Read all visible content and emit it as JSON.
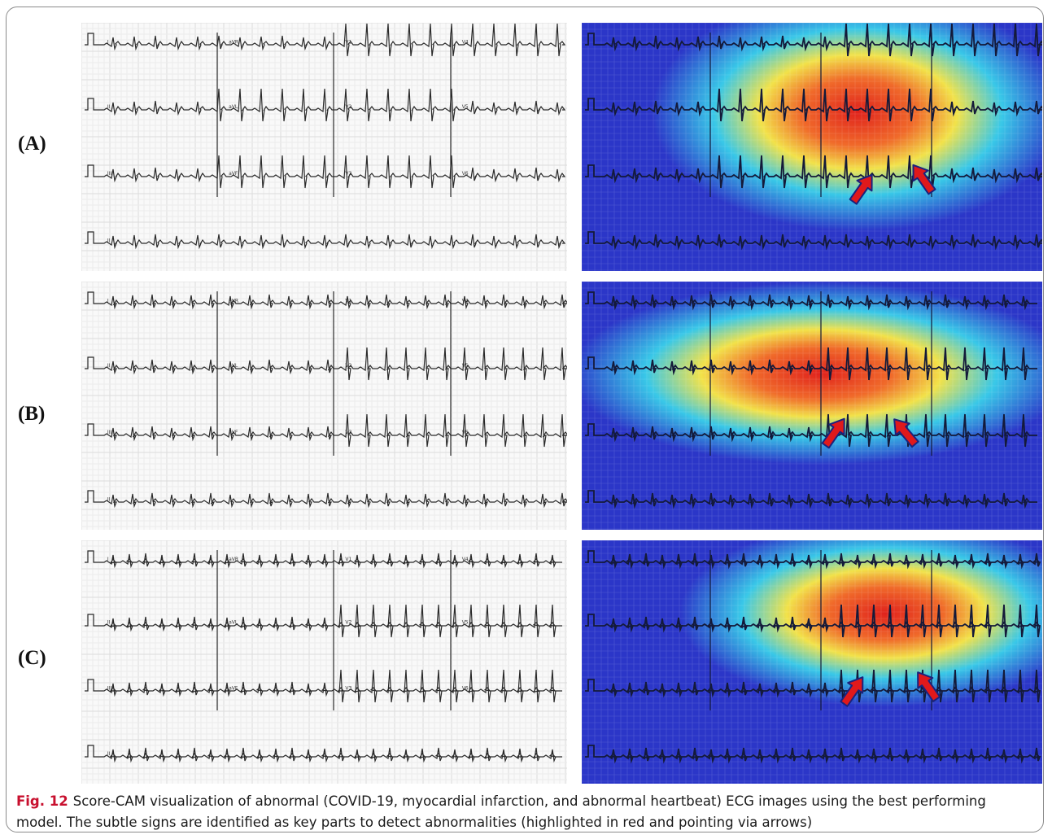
{
  "figure": {
    "rows": [
      {
        "label": "(A)",
        "ecg_lead_labels": [
          "I",
          "aVR",
          "V1",
          "V4",
          "II",
          "aVL",
          "V2",
          "V5",
          "III",
          "aVF",
          "V3",
          "V6",
          "II"
        ],
        "arrow_count": 2
      },
      {
        "label": "(B)",
        "ecg_lead_labels": [
          "I",
          "aVR",
          "V1",
          "V4",
          "II",
          "aVL",
          "V2",
          "V5",
          "III",
          "aVF",
          "V3",
          "V6",
          "II"
        ],
        "arrow_count": 2
      },
      {
        "label": "(C)",
        "ecg_lead_labels": [
          "I",
          "aVR",
          "V1",
          "V4",
          "II",
          "aVL",
          "V2",
          "V5",
          "III",
          "aVF",
          "V3",
          "V6",
          "II"
        ],
        "arrow_count": 2
      }
    ],
    "caption": {
      "number": "Fig. 12",
      "text": "Score-CAM visualization of abnormal (COVID-19, myocardial infarction, and abnormal heartbeat) ECG images using the best performing model. The subtle signs are identified as key parts to detect abnormalities (highlighted in red and pointing via arrows)"
    }
  },
  "colors": {
    "ecg_grid_minor": "#ececec",
    "ecg_grid_major": "#dcdcdc",
    "ecg_trace": "#2a2a2a",
    "heatmap_cold": "#2b36c8",
    "heatmap_mid": "#39c8e8",
    "heatmap_warm": "#f2e24a",
    "heatmap_hot": "#e0221c",
    "arrow_fill": "#e0191b",
    "arrow_stroke": "#1a237e",
    "caption_number": "#c8102e"
  }
}
